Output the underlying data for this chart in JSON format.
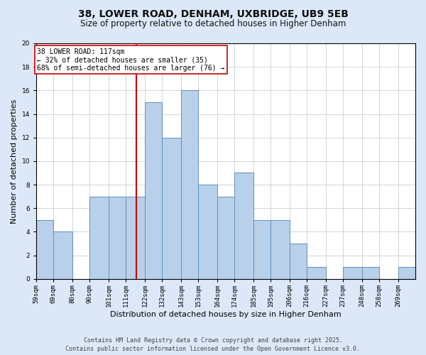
{
  "title": "38, LOWER ROAD, DENHAM, UXBRIDGE, UB9 5EB",
  "subtitle": "Size of property relative to detached houses in Higher Denham",
  "xlabel": "Distribution of detached houses by size in Higher Denham",
  "ylabel": "Number of detached properties",
  "bin_labels": [
    "59sqm",
    "69sqm",
    "80sqm",
    "90sqm",
    "101sqm",
    "111sqm",
    "122sqm",
    "132sqm",
    "143sqm",
    "153sqm",
    "164sqm",
    "174sqm",
    "185sqm",
    "195sqm",
    "206sqm",
    "216sqm",
    "227sqm",
    "237sqm",
    "248sqm",
    "258sqm",
    "269sqm"
  ],
  "bin_edges": [
    59,
    69,
    80,
    90,
    101,
    111,
    122,
    132,
    143,
    153,
    164,
    174,
    185,
    195,
    206,
    216,
    227,
    237,
    248,
    258,
    269,
    279
  ],
  "counts": [
    5,
    4,
    0,
    7,
    7,
    7,
    15,
    12,
    16,
    8,
    7,
    9,
    5,
    5,
    3,
    1,
    0,
    1,
    1,
    0,
    1
  ],
  "bar_color": "#b8d0ea",
  "bar_edge_color": "#6090c0",
  "property_value": 117,
  "vline_color": "#cc0000",
  "annotation_line1": "38 LOWER ROAD: 117sqm",
  "annotation_line2": "← 32% of detached houses are smaller (35)",
  "annotation_line3": "68% of semi-detached houses are larger (76) →",
  "annotation_box_edge_color": "#cc0000",
  "annotation_box_face_color": "#ffffff",
  "ylim": [
    0,
    20
  ],
  "yticks": [
    0,
    2,
    4,
    6,
    8,
    10,
    12,
    14,
    16,
    18,
    20
  ],
  "grid_color": "#c8d0d8",
  "background_color": "#dce8f8",
  "axes_background_color": "#ffffff",
  "footer_text": "Contains HM Land Registry data © Crown copyright and database right 2025.\nContains public sector information licensed under the Open Government Licence v3.0.",
  "title_fontsize": 10,
  "subtitle_fontsize": 8.5,
  "axis_label_fontsize": 8,
  "tick_fontsize": 6.5,
  "annotation_fontsize": 7,
  "footer_fontsize": 6
}
